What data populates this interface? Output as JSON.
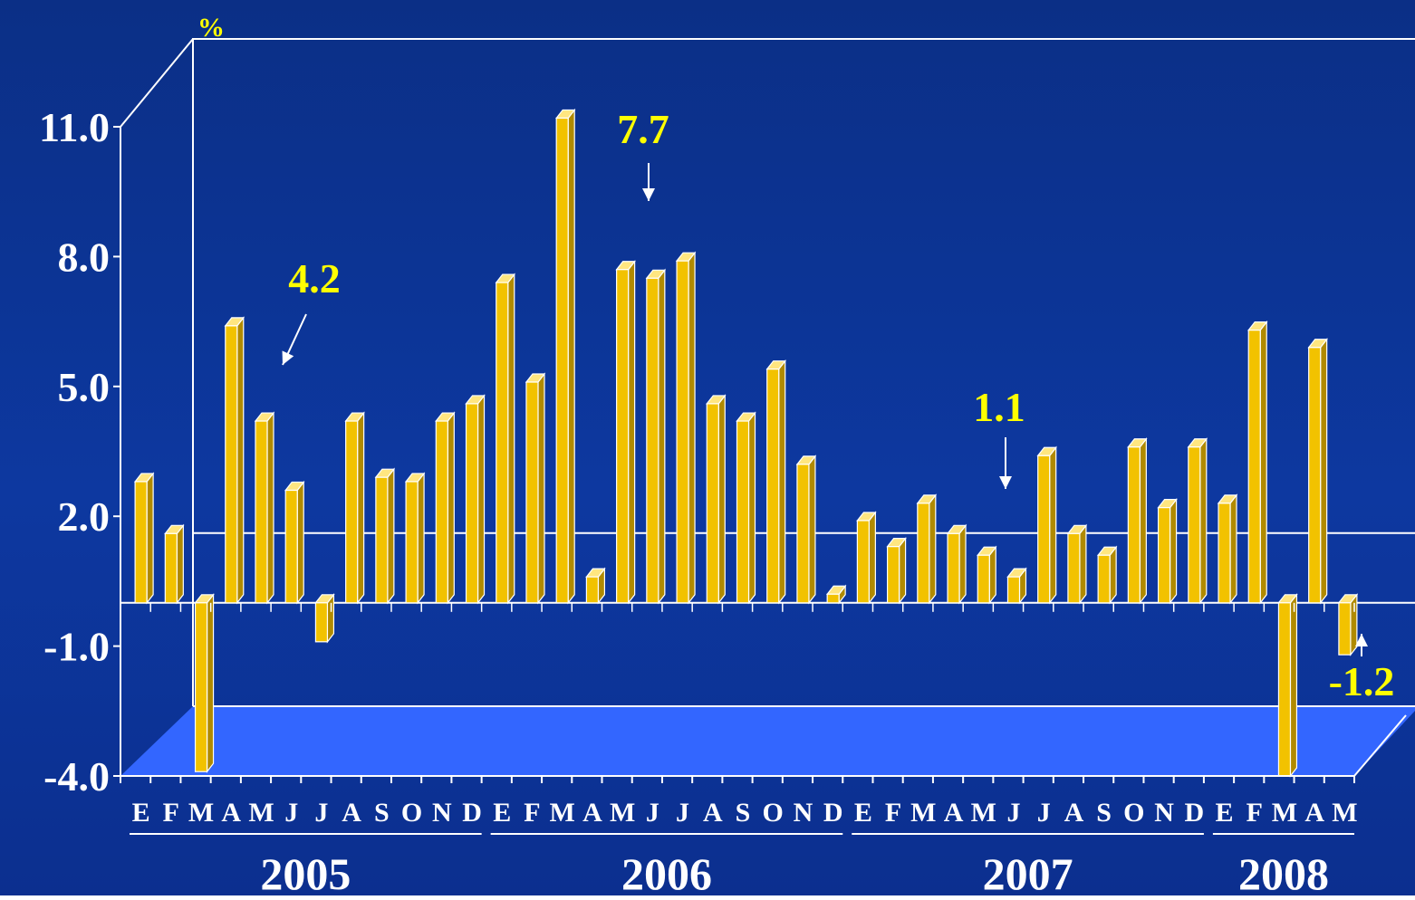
{
  "chart_data": {
    "type": "bar",
    "unit_label": "%",
    "y_ticks": [
      "11.0",
      "8.0",
      "5.0",
      "2.0",
      "-1.0",
      "-4.0"
    ],
    "ylim": [
      -4,
      11
    ],
    "month_labels": [
      "E",
      "F",
      "M",
      "A",
      "M",
      "J",
      "J",
      "A",
      "S",
      "O",
      "N",
      "D",
      "E",
      "F",
      "M",
      "A",
      "M",
      "J",
      "J",
      "A",
      "S",
      "O",
      "N",
      "D",
      "E",
      "F",
      "M",
      "A",
      "M",
      "J",
      "J",
      "A",
      "S",
      "O",
      "N",
      "D",
      "E",
      "F",
      "M",
      "A",
      "M"
    ],
    "years": [
      "2005",
      "2006",
      "2007",
      "2008"
    ],
    "values": [
      2.8,
      1.6,
      -3.9,
      6.4,
      4.2,
      2.6,
      -0.9,
      4.2,
      2.9,
      2.8,
      4.2,
      4.6,
      7.4,
      5.1,
      11.2,
      0.6,
      7.7,
      7.5,
      7.9,
      4.6,
      4.2,
      5.4,
      3.2,
      0.2,
      1.9,
      1.3,
      2.3,
      1.6,
      1.1,
      0.6,
      3.4,
      1.6,
      1.1,
      3.6,
      2.2,
      3.6,
      2.3,
      6.3,
      -4.0,
      5.9,
      -1.2
    ],
    "annotations": [
      {
        "text": "4.2",
        "index": 4
      },
      {
        "text": "7.7",
        "index": 16
      },
      {
        "text": "1.1",
        "index": 28
      },
      {
        "text": "-1.2",
        "index": 40
      }
    ],
    "colors": {
      "bar": "#f2c200",
      "bar_dark": "#b08a00",
      "annotation": "#ffff00",
      "floor": "#3366ff",
      "text": "#ffffff"
    }
  }
}
